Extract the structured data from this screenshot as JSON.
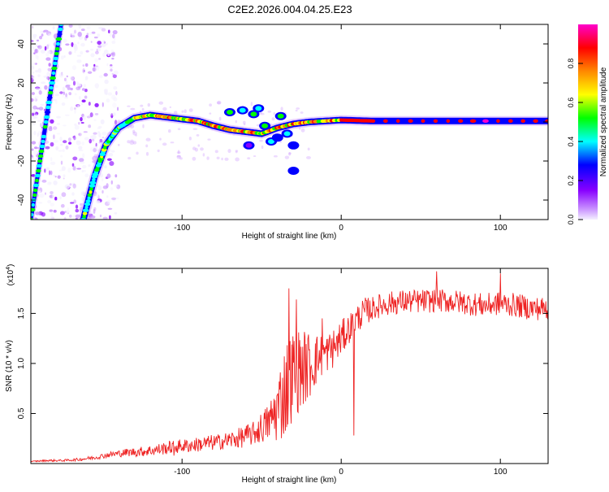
{
  "title": "C2E2.2026.004.04.25.E23",
  "chart_data": [
    {
      "type": "heatmap",
      "name": "spectrogram",
      "xlabel": "Height of straight line (km)",
      "ylabel": "Frequency (Hz)",
      "xlim": [
        -195,
        130
      ],
      "ylim": [
        -50,
        50
      ],
      "xticks": [
        -100,
        0,
        100
      ],
      "yticks": [
        -40,
        -20,
        0,
        20,
        40
      ],
      "colorbar": {
        "label": "Normalized spectral amplitude",
        "range": [
          0,
          1
        ],
        "ticks": [
          "0.0",
          "0.2",
          "0.4",
          "0.6",
          "0.8"
        ],
        "tick_values": [
          0.0,
          0.2,
          0.4,
          0.6,
          0.8
        ],
        "colors": [
          "#f4f0ff",
          "#cc99ff",
          "#8800ff",
          "#0000ff",
          "#00ffff",
          "#00ff00",
          "#ffff00",
          "#ff8800",
          "#ff0000",
          "#ff00cc"
        ]
      },
      "traces": [
        {
          "name": "steep line",
          "points": [
            [
              -195,
              -50
            ],
            [
              -176,
              50
            ]
          ]
        },
        {
          "name": "ridge",
          "points": [
            [
              -162,
              -50
            ],
            [
              -155,
              -28
            ],
            [
              -148,
              -12
            ],
            [
              -140,
              -3
            ],
            [
              -130,
              2
            ],
            [
              -120,
              3.5
            ],
            [
              -110,
              2.5
            ],
            [
              -100,
              1.5
            ],
            [
              -90,
              0.5
            ],
            [
              -80,
              -2
            ],
            [
              -70,
              -4
            ],
            [
              -60,
              -5
            ],
            [
              -50,
              -6
            ],
            [
              -40,
              -3
            ],
            [
              -30,
              -1
            ],
            [
              -20,
              0
            ],
            [
              0,
              1
            ],
            [
              20,
              0.5
            ],
            [
              130,
              0.5
            ]
          ]
        }
      ],
      "blobs": [
        {
          "x": -70,
          "y": 5,
          "a": 0.5
        },
        {
          "x": -62,
          "y": 6,
          "a": 0.45
        },
        {
          "x": -55,
          "y": 4,
          "a": 0.55
        },
        {
          "x": -48,
          "y": -2,
          "a": 0.6
        },
        {
          "x": -44,
          "y": -10,
          "a": 0.4
        },
        {
          "x": -40,
          "y": -8,
          "a": 0.35
        },
        {
          "x": -38,
          "y": 3,
          "a": 0.5
        },
        {
          "x": -34,
          "y": -6,
          "a": 0.45
        },
        {
          "x": -30,
          "y": -12,
          "a": 0.3
        },
        {
          "x": -58,
          "y": -12,
          "a": 0.25
        },
        {
          "x": -30,
          "y": -25,
          "a": 0.3
        },
        {
          "x": -52,
          "y": 7,
          "a": 0.4
        }
      ]
    },
    {
      "type": "line",
      "name": "snr",
      "xlabel": "Height of straight line (km)",
      "ylabel": "SNR (10 * v/v)",
      "scale_label": "(x10",
      "scale_exp": "4",
      "scale_suffix": ")",
      "xlim": [
        -195,
        130
      ],
      "ylim": [
        0,
        1.95
      ],
      "xticks": [
        -100,
        0,
        100
      ],
      "yticks": [
        0.5,
        1.0,
        1.5
      ],
      "ytick_labels": [
        "0.5",
        "1.0",
        "1.5"
      ],
      "color": "#ee2222",
      "x": [
        -195,
        -185,
        -175,
        -165,
        -155,
        -145,
        -135,
        -125,
        -115,
        -105,
        -95,
        -85,
        -75,
        -65,
        -55,
        -45,
        -40,
        -35,
        -30,
        -25,
        -20,
        -15,
        -10,
        -5,
        0,
        5,
        10,
        15,
        20,
        25,
        30,
        40,
        50,
        60,
        70,
        80,
        90,
        100,
        110,
        120,
        130
      ],
      "values": [
        0.02,
        0.03,
        0.03,
        0.04,
        0.06,
        0.09,
        0.11,
        0.12,
        0.14,
        0.17,
        0.18,
        0.2,
        0.22,
        0.25,
        0.3,
        0.42,
        0.55,
        0.75,
        0.9,
        0.95,
        0.98,
        1.05,
        1.1,
        1.15,
        1.25,
        1.35,
        1.45,
        1.52,
        1.55,
        1.58,
        1.6,
        1.62,
        1.62,
        1.63,
        1.62,
        1.6,
        1.58,
        1.6,
        1.58,
        1.55,
        1.55
      ],
      "noise": [
        0.005,
        0.01,
        0.01,
        0.015,
        0.02,
        0.03,
        0.04,
        0.05,
        0.06,
        0.07,
        0.07,
        0.08,
        0.08,
        0.1,
        0.12,
        0.2,
        0.35,
        0.5,
        0.45,
        0.4,
        0.35,
        0.25,
        0.2,
        0.2,
        0.18,
        0.15,
        0.14,
        0.14,
        0.12,
        0.12,
        0.12,
        0.12,
        0.12,
        0.12,
        0.12,
        0.12,
        0.12,
        0.12,
        0.12,
        0.12,
        0.12
      ],
      "dips": [
        [
          8,
          0.28
        ],
        [
          -105,
          0.08
        ]
      ],
      "peaks": [
        [
          -33,
          1.75
        ],
        [
          -28,
          1.64
        ],
        [
          -12,
          1.45
        ],
        [
          60,
          1.92
        ],
        [
          100,
          1.9
        ]
      ]
    }
  ]
}
